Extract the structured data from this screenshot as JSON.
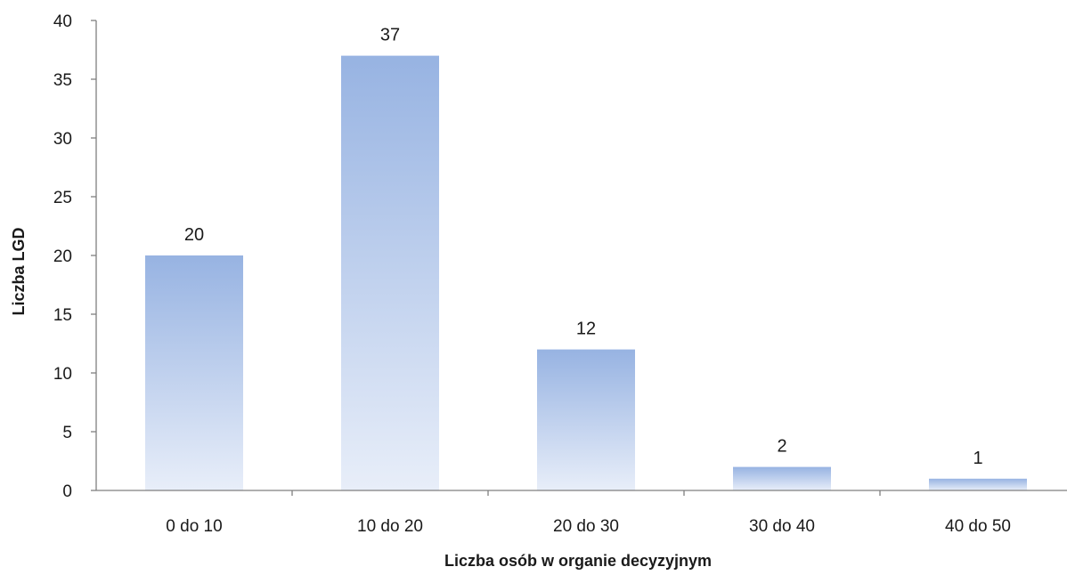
{
  "chart_data": {
    "type": "bar",
    "categories": [
      "0 do 10",
      "10 do 20",
      "20 do 30",
      "30 do 40",
      "40 do 50"
    ],
    "values": [
      20,
      37,
      12,
      2,
      1
    ],
    "title": "",
    "xlabel": "Liczba osób w organie decyzyjnym",
    "ylabel": "Liczba LGD",
    "ylim": [
      0,
      40
    ],
    "yticks": [
      0,
      5,
      10,
      15,
      20,
      25,
      30,
      35,
      40
    ],
    "grid": false,
    "legend": "none",
    "data_labels": true,
    "bar_color_top": "#97b3e2",
    "bar_color_bottom": "#e8eef9"
  }
}
